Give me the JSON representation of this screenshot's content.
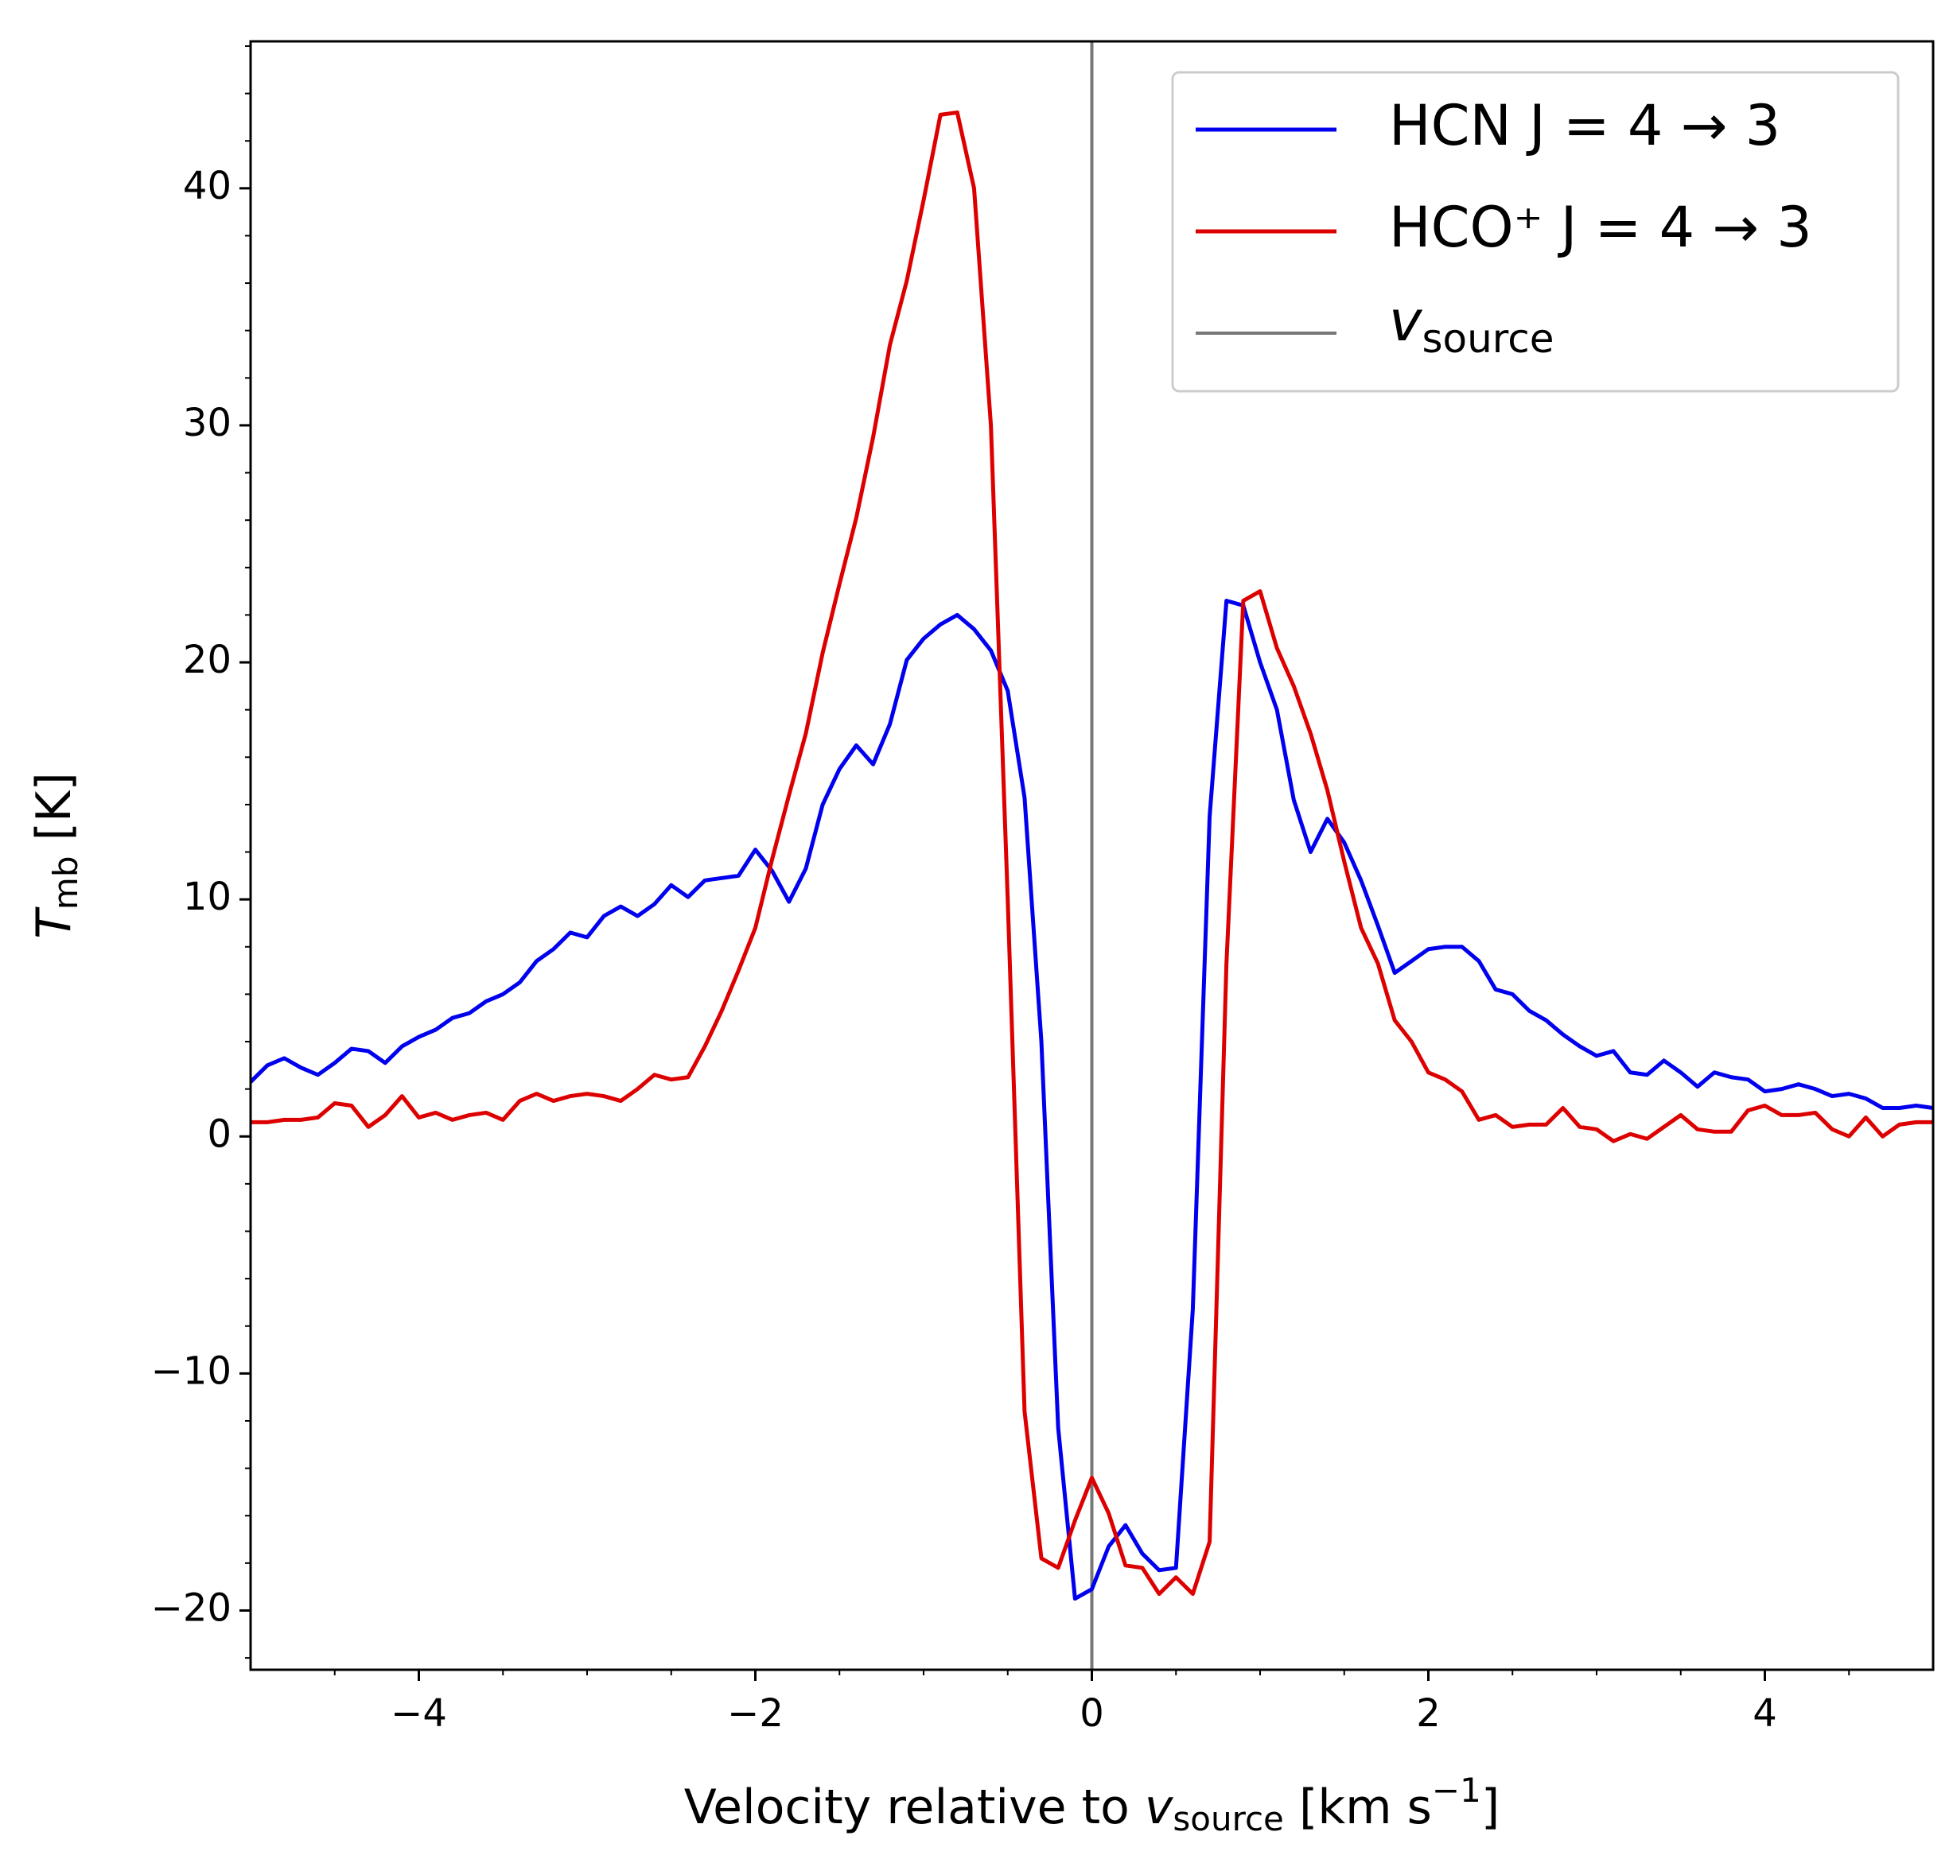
{
  "chart_data": {
    "type": "line",
    "x_label": {
      "main": "Velocity relative to ",
      "var": "v",
      "sub": "source",
      "tail": " [km s",
      "sup": "−1",
      "end": "]"
    },
    "y_label": {
      "var": "T",
      "sub": "mb",
      "tail": " [K]"
    },
    "x": [
      -5,
      -4.9,
      -4.8,
      -4.7,
      -4.6,
      -4.5,
      -4.4,
      -4.3,
      -4.2,
      -4.1,
      -4,
      -3.9,
      -3.8,
      -3.7,
      -3.6,
      -3.5,
      -3.4,
      -3.3,
      -3.2,
      -3.1,
      -3,
      -2.9,
      -2.8,
      -2.7,
      -2.6,
      -2.5,
      -2.4,
      -2.3,
      -2.2,
      -2.1,
      -2,
      -1.9,
      -1.8,
      -1.7,
      -1.6,
      -1.5,
      -1.4,
      -1.3,
      -1.2,
      -1.1,
      -1,
      -0.9,
      -0.8,
      -0.7,
      -0.6,
      -0.5,
      -0.4,
      -0.3,
      -0.2,
      -0.1,
      0,
      0.1,
      0.2,
      0.3,
      0.4,
      0.5,
      0.6,
      0.7,
      0.8,
      0.9,
      1,
      1.1,
      1.2,
      1.3,
      1.4,
      1.5,
      1.6,
      1.7,
      1.8,
      1.9,
      2,
      2.1,
      2.2,
      2.3,
      2.4,
      2.5,
      2.6,
      2.7,
      2.8,
      2.9,
      3,
      3.1,
      3.2,
      3.3,
      3.4,
      3.5,
      3.6,
      3.7,
      3.8,
      3.9,
      4,
      4.1,
      4.2,
      4.3,
      4.4,
      4.5,
      4.6,
      4.7,
      4.8,
      4.9,
      5
    ],
    "series": [
      {
        "name": "HCN J = 4 → 3",
        "color": "#0000ee",
        "values": [
          2.3,
          3.0,
          3.3,
          2.9,
          2.6,
          3.1,
          3.7,
          3.6,
          3.1,
          3.8,
          4.2,
          4.5,
          5.0,
          5.2,
          5.7,
          6.0,
          6.5,
          7.4,
          7.9,
          8.6,
          8.4,
          9.3,
          9.7,
          9.3,
          9.8,
          10.6,
          10.1,
          10.8,
          10.9,
          11.0,
          12.1,
          11.2,
          9.9,
          11.3,
          14.0,
          15.5,
          16.5,
          15.7,
          17.4,
          20.1,
          21.0,
          21.6,
          22.0,
          21.4,
          20.5,
          18.8,
          14.3,
          4.0,
          -12.3,
          -19.5,
          -19.1,
          -17.3,
          -16.4,
          -17.6,
          -18.3,
          -18.2,
          -7.3,
          13.5,
          22.6,
          22.4,
          20.0,
          18.0,
          14.2,
          12.0,
          13.4,
          12.4,
          10.8,
          8.9,
          6.9,
          7.4,
          7.9,
          8.0,
          8.0,
          7.4,
          6.2,
          6.0,
          5.3,
          4.9,
          4.3,
          3.8,
          3.4,
          3.6,
          2.7,
          2.6,
          3.2,
          2.7,
          2.1,
          2.7,
          2.5,
          2.4,
          1.9,
          2.0,
          2.2,
          2.0,
          1.7,
          1.8,
          1.6,
          1.2,
          1.2,
          1.3,
          1.2
        ]
      },
      {
        "name": "HCO⁺ J = 4 → 3",
        "color": "#dd0000",
        "values": [
          0.6,
          0.6,
          0.7,
          0.7,
          0.8,
          1.4,
          1.3,
          0.4,
          0.9,
          1.7,
          0.8,
          1.0,
          0.7,
          0.9,
          1.0,
          0.7,
          1.5,
          1.8,
          1.5,
          1.7,
          1.8,
          1.7,
          1.5,
          2.0,
          2.6,
          2.4,
          2.5,
          3.8,
          5.3,
          7.0,
          8.8,
          11.7,
          14.4,
          17.0,
          20.4,
          23.3,
          26.1,
          29.5,
          33.4,
          36.1,
          39.5,
          43.1,
          43.2,
          40.0,
          30.0,
          10.0,
          -11.6,
          -17.8,
          -18.2,
          -16.2,
          -14.4,
          -15.9,
          -18.1,
          -18.2,
          -19.3,
          -18.6,
          -19.3,
          -17.1,
          7.3,
          22.6,
          23.0,
          20.6,
          19.0,
          17.0,
          14.6,
          11.6,
          8.8,
          7.3,
          4.9,
          4.0,
          2.7,
          2.4,
          1.9,
          0.7,
          0.9,
          0.4,
          0.5,
          0.5,
          1.2,
          0.4,
          0.3,
          -0.2,
          0.1,
          -0.1,
          0.4,
          0.9,
          0.3,
          0.2,
          0.2,
          1.1,
          1.3,
          0.9,
          0.9,
          1.0,
          0.3,
          0.0,
          0.8,
          0.0,
          0.5,
          0.6,
          0.6
        ]
      }
    ],
    "vline": {
      "x": 0,
      "color": "#777777",
      "name": "v",
      "name_sub": "source"
    },
    "xlim": [
      -5,
      5
    ],
    "xticks": [
      {
        "value": -4,
        "label": "−4"
      },
      {
        "value": -2,
        "label": "−2"
      },
      0,
      2,
      4
    ],
    "xminorticks": [
      -4.5,
      -3.5,
      -3,
      -2.5,
      -1.5,
      -1,
      -0.5,
      0.5,
      1,
      1.5,
      2.5,
      3,
      3.5,
      4.5
    ],
    "ylim": [
      -22.5,
      46.2
    ],
    "yticks": [
      {
        "value": -20,
        "label": "−20"
      },
      {
        "value": -10,
        "label": "−10"
      },
      0,
      10,
      20,
      30,
      40
    ],
    "yminorticks": [
      -22,
      -18,
      -16,
      -14,
      -12,
      -8,
      -6,
      -4,
      -2,
      2,
      4,
      6,
      8,
      12,
      14,
      16,
      18,
      22,
      24,
      26,
      28,
      32,
      34,
      36,
      38,
      42,
      44,
      46
    ],
    "grid": false,
    "legend": "upper right"
  }
}
